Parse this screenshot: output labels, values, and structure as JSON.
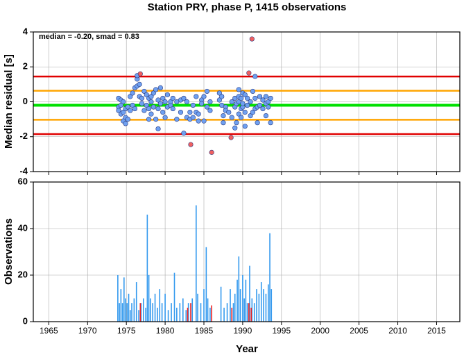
{
  "chart_data": [
    {
      "type": "scatter",
      "title": "Station PRY, phase P, 1415 observations",
      "annotation": "median = -0.20, smad = 0.83",
      "ylabel": "Median residual [s]",
      "xlim": [
        1963,
        2018
      ],
      "ylim": [
        -4,
        4
      ],
      "yticks": [
        -4,
        -2,
        0,
        2,
        4
      ],
      "grid": true,
      "hlines": [
        {
          "value": 1.45,
          "color": "#e00000"
        },
        {
          "value": 0.63,
          "color": "#ffa500"
        },
        {
          "value": -0.2,
          "color": "#00e000"
        },
        {
          "value": -1.03,
          "color": "#ffa500"
        },
        {
          "value": -1.85,
          "color": "#e00000"
        }
      ],
      "series": [
        {
          "color": "#6fa0f0",
          "x": [
            1974.0,
            1974.0,
            1974.0,
            1974.3,
            1974.3,
            1974.3,
            1974.6,
            1974.6,
            1974.6,
            1974.9,
            1974.9,
            1974.9,
            1975.2,
            1975.2,
            1975.5,
            1975.5,
            1975.8,
            1975.8,
            1976.1,
            1976.1,
            1976.4,
            1976.4,
            1976.4,
            1976.7,
            1976.7,
            1977.0,
            1977.0,
            1977.3,
            1977.3,
            1977.6,
            1977.6,
            1977.9,
            1977.9,
            1977.9,
            1978.2,
            1978.2,
            1978.2,
            1978.5,
            1978.5,
            1978.8,
            1978.8,
            1979.1,
            1979.1,
            1979.1,
            1979.4,
            1979.4,
            1979.7,
            1979.7,
            1980.0,
            1980.0,
            1980.3,
            1980.3,
            1980.7,
            1980.7,
            1981.0,
            1981.0,
            1981.5,
            1981.5,
            1982.0,
            1982.0,
            1982.4,
            1982.4,
            1982.8,
            1982.8,
            1983.2,
            1983.2,
            1983.6,
            1983.6,
            1984.0,
            1984.0,
            1984.3,
            1984.3,
            1984.7,
            1984.7,
            1985.0,
            1985.0,
            1985.4,
            1985.4,
            1985.8,
            1985.8,
            1987.0,
            1987.0,
            1987.3,
            1987.3,
            1987.5,
            1987.5,
            1987.8,
            1987.8,
            1988.2,
            1988.6,
            1988.6,
            1989.0,
            1989.0,
            1989.0,
            1989.2,
            1989.2,
            1989.5,
            1989.5,
            1989.5,
            1989.5,
            1989.8,
            1989.8,
            1989.8,
            1990.0,
            1990.0,
            1990.0,
            1990.3,
            1990.3,
            1990.3,
            1990.6,
            1990.6,
            1991.0,
            1991.0,
            1991.3,
            1991.3,
            1991.6,
            1991.6,
            1991.6,
            1991.9,
            1991.9,
            1992.2,
            1992.2,
            1992.6,
            1992.6,
            1993.0,
            1993.0,
            1993.0,
            1993.3,
            1993.3,
            1993.6,
            1993.6
          ],
          "values": [
            0.2,
            -0.3,
            -0.5,
            0.1,
            -0.2,
            -0.7,
            0.0,
            -0.6,
            -1.1,
            -1.25,
            -0.9,
            -0.4,
            -1.0,
            -0.3,
            0.3,
            -0.5,
            0.5,
            -0.2,
            -0.4,
            0.8,
            1.3,
            0.9,
            1.5,
            0.3,
            1.0,
            0.2,
            -0.1,
            -0.5,
            0.6,
            0.4,
            -0.2,
            0.2,
            -0.4,
            -1.0,
            0.0,
            0.3,
            -0.7,
            0.5,
            -0.3,
            0.7,
            -1.0,
            -1.55,
            0.1,
            -0.4,
            0.8,
            -0.1,
            0.2,
            -0.6,
            -0.9,
            0.0,
            -0.3,
            0.4,
            -0.2,
            0.0,
            0.2,
            -0.4,
            -1.0,
            0.0,
            0.1,
            -0.6,
            0.2,
            -1.8,
            -0.9,
            0.0,
            -0.6,
            -1.0,
            -0.2,
            -0.9,
            -0.6,
            0.3,
            -0.7,
            -1.1,
            0.1,
            -0.1,
            0.3,
            -1.1,
            0.6,
            -0.3,
            -0.5,
            0.0,
            0.1,
            0.5,
            -0.2,
            0.3,
            -0.8,
            -1.2,
            -0.3,
            -0.5,
            -0.6,
            0.0,
            -0.9,
            -1.5,
            0.2,
            -0.3,
            -0.1,
            -1.2,
            0.0,
            -0.7,
            0.3,
            0.7,
            -0.4,
            0.2,
            -0.9,
            0.5,
            -0.3,
            -0.1,
            0.4,
            -0.6,
            -1.4,
            0.2,
            -0.2,
            -0.8,
            0.0,
            0.6,
            -0.6,
            -0.4,
            0.2,
            1.45,
            -0.3,
            -1.2,
            0.3,
            -0.2,
            0.1,
            -0.4,
            0.3,
            -0.1,
            -0.8,
            0.0,
            -0.3,
            0.2,
            -1.2
          ]
        },
        {
          "color": "#f06060",
          "x": [
            1976.8,
            1983.3,
            1986.0,
            1988.5,
            1990.8,
            1991.2
          ],
          "values": [
            1.6,
            -2.45,
            -2.9,
            -2.05,
            1.65,
            3.6
          ]
        }
      ]
    },
    {
      "type": "bar",
      "ylabel": "Observations",
      "xlabel": "Year",
      "xlim": [
        1963,
        2018
      ],
      "xticks": [
        1965,
        1970,
        1975,
        1980,
        1985,
        1990,
        1995,
        2000,
        2005,
        2010,
        2015
      ],
      "ylim": [
        0,
        60
      ],
      "yticks": [
        0,
        20,
        40,
        60
      ],
      "grid": true,
      "series": [
        {
          "color": "#3399ee",
          "x": [
            1973.9,
            1974.1,
            1974.3,
            1974.5,
            1974.7,
            1974.9,
            1975.1,
            1975.3,
            1975.5,
            1975.7,
            1976.0,
            1976.3,
            1976.6,
            1976.9,
            1977.2,
            1977.5,
            1977.7,
            1977.9,
            1978.1,
            1978.4,
            1978.7,
            1979.0,
            1979.3,
            1979.6,
            1980.0,
            1980.4,
            1980.8,
            1981.2,
            1981.5,
            1981.9,
            1982.3,
            1982.7,
            1983.0,
            1983.5,
            1984.0,
            1984.2,
            1984.6,
            1985.0,
            1985.3,
            1985.5,
            1985.8,
            1987.2,
            1987.6,
            1988.0,
            1988.4,
            1988.8,
            1989.0,
            1989.3,
            1989.5,
            1989.7,
            1990.0,
            1990.2,
            1990.4,
            1990.6,
            1990.9,
            1991.2,
            1991.5,
            1991.8,
            1992.1,
            1992.4,
            1992.7,
            1993.0,
            1993.3,
            1993.5,
            1993.7
          ],
          "values": [
            20,
            8,
            14,
            8,
            19,
            10,
            8,
            12,
            5,
            8,
            10,
            17,
            5,
            8,
            10,
            6,
            46,
            20,
            10,
            8,
            12,
            6,
            14,
            8,
            12,
            5,
            8,
            21,
            6,
            8,
            10,
            5,
            8,
            10,
            50,
            12,
            8,
            14,
            32,
            10,
            6,
            15,
            6,
            8,
            14,
            8,
            12,
            18,
            28,
            14,
            20,
            10,
            18,
            8,
            24,
            10,
            8,
            14,
            12,
            17,
            14,
            12,
            16,
            38,
            14
          ]
        },
        {
          "color": "#ee2222",
          "x": [
            1976.8,
            1982.9,
            1983.3,
            1986.0,
            1988.6,
            1990.8,
            1991.1
          ],
          "values": [
            8,
            6,
            8,
            7,
            6,
            8,
            6
          ]
        }
      ]
    }
  ]
}
